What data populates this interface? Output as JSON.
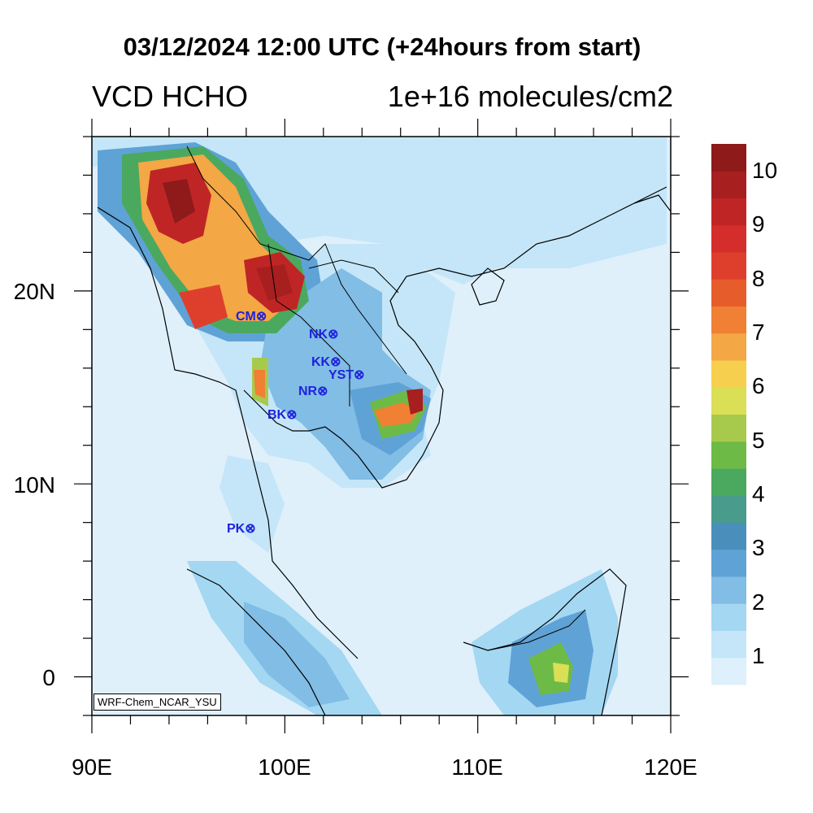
{
  "title": "03/12/2024 12:00 UTC (+24hours from start)",
  "left_string": "VCD HCHO",
  "right_string": "1e+16 molecules/cm2",
  "credit": "WRF-Chem_NCAR_YSU",
  "map": {
    "lon_range": [
      90,
      120
    ],
    "lat_range": [
      -2,
      28
    ],
    "x_ticks": [
      {
        "value": 90,
        "label": "90E"
      },
      {
        "value": 100,
        "label": "100E"
      },
      {
        "value": 110,
        "label": "110E"
      },
      {
        "value": 120,
        "label": "120E"
      }
    ],
    "y_ticks": [
      {
        "value": 0,
        "label": "0"
      },
      {
        "value": 10,
        "label": "10N"
      },
      {
        "value": 20,
        "label": "20N"
      }
    ],
    "ocean_color": "#dff0fb",
    "coast_color": "#000000"
  },
  "sites": [
    {
      "code": "CM",
      "lon": 98.8,
      "lat": 18.8
    },
    {
      "code": "NK",
      "lon": 102.7,
      "lat": 17.8
    },
    {
      "code": "KK",
      "lon": 102.8,
      "lat": 16.4
    },
    {
      "code": "YST",
      "lon": 104.1,
      "lat": 15.7
    },
    {
      "code": "NR",
      "lon": 102.1,
      "lat": 14.9
    },
    {
      "code": "BK",
      "lon": 100.6,
      "lat": 13.7
    },
    {
      "code": "PK",
      "lon": 98.4,
      "lat": 7.9
    }
  ],
  "colorbar": {
    "labels": [
      "1",
      "2",
      "3",
      "4",
      "5",
      "6",
      "7",
      "8",
      "9",
      "10"
    ],
    "colors": [
      "#ddf0fb",
      "#c4e6f8",
      "#a4d7f2",
      "#81bde5",
      "#5fa2d6",
      "#4a8fbc",
      "#499b8b",
      "#4aa95e",
      "#6dbb46",
      "#a8ca4c",
      "#dadf55",
      "#f7cf4e",
      "#f3a745",
      "#f08033",
      "#e75c2b",
      "#de3f2d",
      "#d42d2b",
      "#c02525",
      "#a71f1f",
      "#8e1a1a"
    ]
  }
}
